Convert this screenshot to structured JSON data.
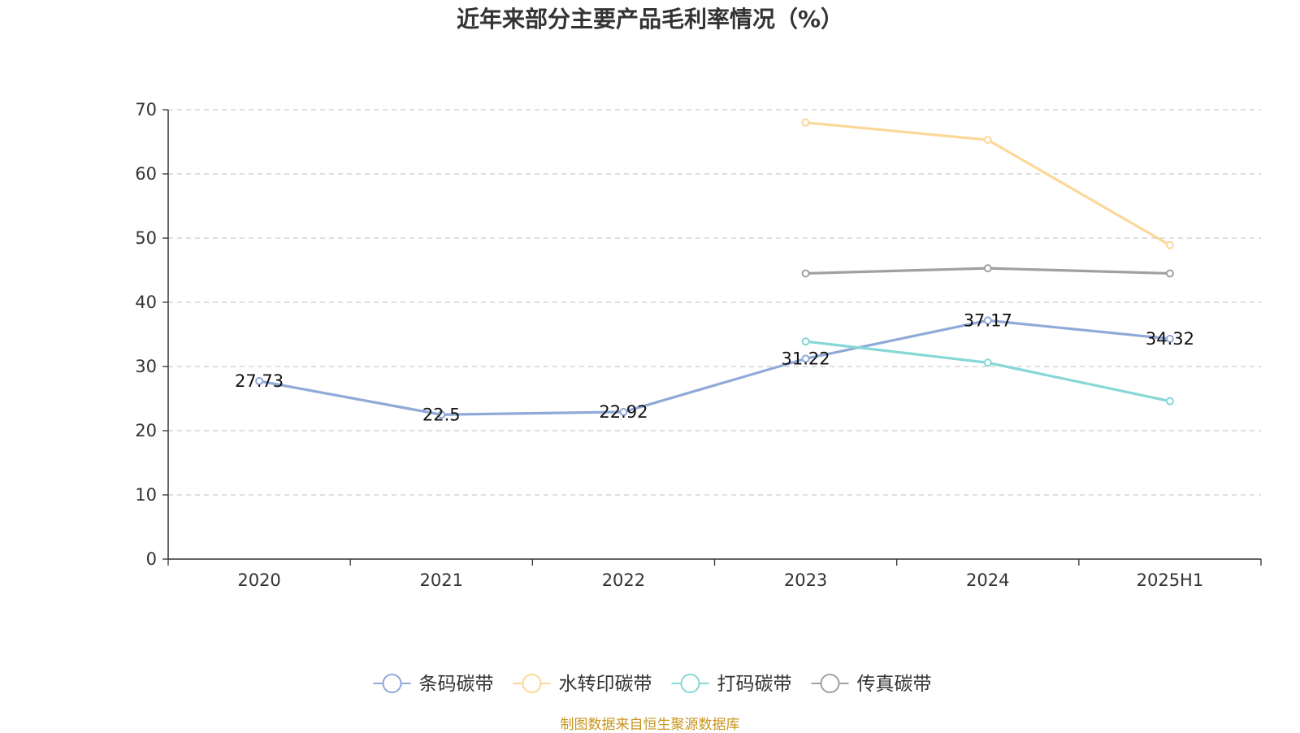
{
  "chart_data": {
    "type": "line",
    "title": "近年来部分主要产品毛利率情况（%）",
    "categories": [
      "2020",
      "2021",
      "2022",
      "2023",
      "2024",
      "2025H1"
    ],
    "ylim": [
      0,
      70
    ],
    "yticks": [
      0,
      10,
      20,
      30,
      40,
      50,
      60,
      70
    ],
    "grid": true,
    "legend_position": "bottom",
    "series": [
      {
        "name": "条码碳带",
        "color": "#8fa9d8",
        "values": [
          27.73,
          22.5,
          22.92,
          31.22,
          37.17,
          34.32
        ],
        "show_labels": true
      },
      {
        "name": "水转印碳带",
        "color": "#fbd898",
        "values": [
          null,
          null,
          null,
          68.0,
          65.3,
          48.9
        ],
        "show_labels": false
      },
      {
        "name": "打码碳带",
        "color": "#86d7d6",
        "values": [
          null,
          null,
          null,
          33.9,
          30.6,
          24.6
        ],
        "show_labels": false
      },
      {
        "name": "传真碳带",
        "color": "#a0a0a0",
        "values": [
          null,
          null,
          null,
          44.5,
          45.3,
          44.5
        ],
        "show_labels": false
      }
    ]
  },
  "source_note": "制图数据来自恒生聚源数据库"
}
